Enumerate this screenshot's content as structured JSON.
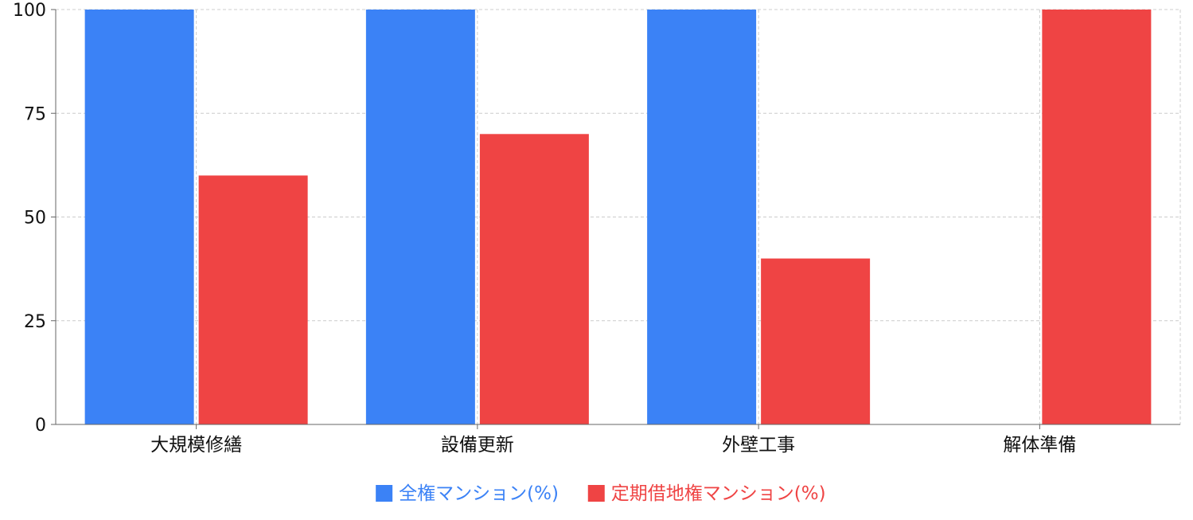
{
  "chart_data": {
    "type": "bar",
    "categories": [
      "大規模修繕",
      "設備更新",
      "外壁工事",
      "解体準備"
    ],
    "series": [
      {
        "name": "全権マンション(%)",
        "values": [
          100,
          100,
          100,
          0
        ],
        "color": "#3b82f6"
      },
      {
        "name": "定期借地権マンション(%)",
        "values": [
          60,
          70,
          40,
          100
        ],
        "color": "#ef4444"
      }
    ],
    "title": "",
    "xlabel": "",
    "ylabel": "",
    "ylim": [
      0,
      100
    ],
    "yticks": [
      0,
      25,
      50,
      75,
      100
    ],
    "grid": true,
    "legend_position": "bottom"
  }
}
